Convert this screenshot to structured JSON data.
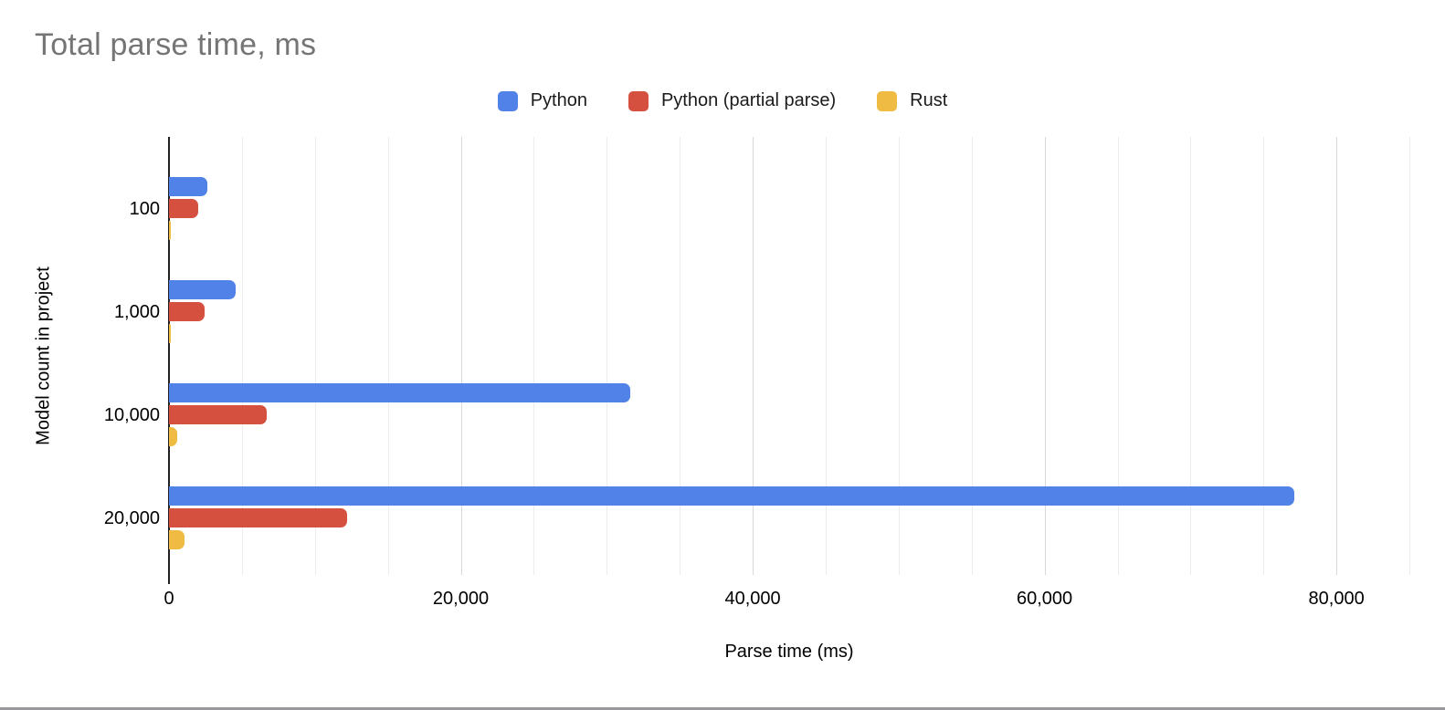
{
  "chart_data": {
    "type": "bar",
    "orientation": "horizontal",
    "title": "Total parse time, ms",
    "xlabel": "Parse time (ms)",
    "ylabel": "Model count in project",
    "categories": [
      "100",
      "1,000",
      "10,000",
      "20,000"
    ],
    "series": [
      {
        "name": "Python",
        "color": "#5082E8",
        "values": [
          2600,
          4550,
          31600,
          77100
        ]
      },
      {
        "name": "Python (partial parse)",
        "color": "#D5503F",
        "values": [
          2000,
          2450,
          6700,
          12200
        ]
      },
      {
        "name": "Rust",
        "color": "#F0BB42",
        "values": [
          120,
          130,
          580,
          1080
        ]
      }
    ],
    "x_axis": {
      "min": 0,
      "max": 85000,
      "tick_values": [
        0,
        20000,
        40000,
        60000,
        80000
      ],
      "tick_labels": [
        "0",
        "20,000",
        "40,000",
        "60,000",
        "80,000"
      ],
      "minor_gridline_step": 5000,
      "major_gridline_step": 20000
    },
    "legend_position": "top",
    "grid": true
  },
  "window": {
    "bottom_border_color": "#98989d"
  },
  "colors": {
    "title_text": "#757575",
    "axis_text": "#000000",
    "minor_gridline": "#ececec",
    "major_gridline": "#d8d8d8",
    "axis_line": "#212121"
  }
}
